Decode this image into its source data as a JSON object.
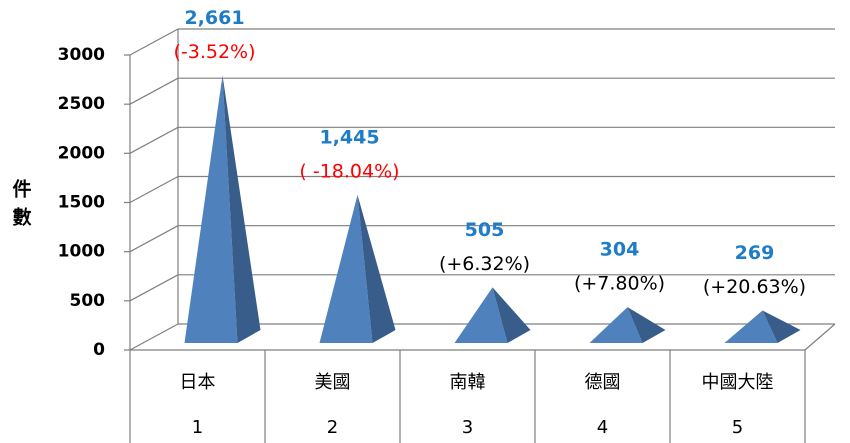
{
  "chart_data": {
    "type": "pyramid",
    "y_label": "件數",
    "categories": [
      "日本",
      "美國",
      "南韓",
      "德國",
      "中國大陸"
    ],
    "ranks": [
      1,
      2,
      3,
      4,
      5
    ],
    "values": [
      2661,
      1445,
      505,
      304,
      269
    ],
    "value_labels": [
      "2,661",
      "1,445",
      "505",
      "304",
      "269"
    ],
    "change_labels": [
      "(-3.52%)",
      "( -18.04%)",
      "(+6.32%)",
      "(+7.80%)",
      "(+20.63%)"
    ],
    "change_colors": [
      "#ff0000",
      "#ff0000",
      "#000000",
      "#000000",
      "#000000"
    ],
    "color": "#4f81bd",
    "shade_color": "#385d8a",
    "value_label_color": "#1f7dc8",
    "ylim": [
      0,
      3000
    ],
    "yticks": [
      0,
      500,
      1000,
      1500,
      2000,
      2500,
      3000
    ],
    "grid": true
  }
}
